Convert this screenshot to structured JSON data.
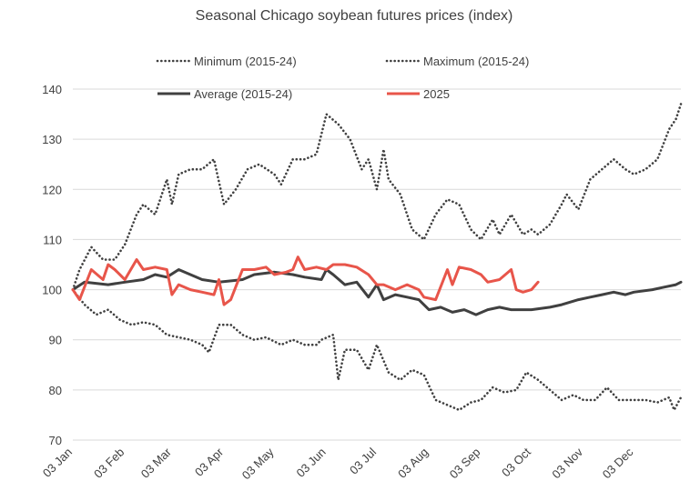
{
  "chart_data": {
    "type": "line",
    "title": "Seasonal Chicago soybean futures prices (index)",
    "xlabel": "",
    "ylabel": "",
    "ylim": [
      70,
      140
    ],
    "yticks": [
      70,
      80,
      90,
      100,
      110,
      120,
      130,
      140
    ],
    "x_ticks": [
      "03 Jan",
      "03 Feb",
      "03 Mar",
      "03 Apr",
      "03 May",
      "03 Jun",
      "03 Jul",
      "03 Aug",
      "03 Sep",
      "03 Oct",
      "03 Nov",
      "03 Dec"
    ],
    "grid": "horizontal",
    "legend_position": "top",
    "series": [
      {
        "name": "Minimum (2015-24)",
        "style": "dotted",
        "color": "#404040",
        "points": [
          [
            "03 Jan",
            100
          ],
          [
            "10 Jan",
            97
          ],
          [
            "17 Jan",
            95
          ],
          [
            "24 Jan",
            96
          ],
          [
            "31 Jan",
            94
          ],
          [
            "07 Feb",
            93
          ],
          [
            "14 Feb",
            93.5
          ],
          [
            "21 Feb",
            93
          ],
          [
            "28 Feb",
            91
          ],
          [
            "07 Mar",
            90.5
          ],
          [
            "14 Mar",
            90
          ],
          [
            "21 Mar",
            89
          ],
          [
            "25 Mar",
            87.5
          ],
          [
            "31 Mar",
            93
          ],
          [
            "07 Apr",
            93
          ],
          [
            "14 Apr",
            91
          ],
          [
            "21 Apr",
            90
          ],
          [
            "28 Apr",
            90.5
          ],
          [
            "07 May",
            89
          ],
          [
            "14 May",
            90
          ],
          [
            "21 May",
            89
          ],
          [
            "28 May",
            89
          ],
          [
            "31 May",
            90
          ],
          [
            "07 Jun",
            91
          ],
          [
            "10 Jun",
            82
          ],
          [
            "14 Jun",
            88
          ],
          [
            "21 Jun",
            88
          ],
          [
            "28 Jun",
            84
          ],
          [
            "03 Jul",
            89
          ],
          [
            "10 Jul",
            83.5
          ],
          [
            "17 Jul",
            82
          ],
          [
            "24 Jul",
            84
          ],
          [
            "31 Jul",
            83
          ],
          [
            "07 Aug",
            78
          ],
          [
            "14 Aug",
            77
          ],
          [
            "21 Aug",
            76
          ],
          [
            "28 Aug",
            77.5
          ],
          [
            "03 Sep",
            78
          ],
          [
            "10 Sep",
            80.5
          ],
          [
            "17 Sep",
            79.5
          ],
          [
            "24 Sep",
            80
          ],
          [
            "30 Sep",
            83.5
          ],
          [
            "07 Oct",
            82
          ],
          [
            "14 Oct",
            80
          ],
          [
            "21 Oct",
            78
          ],
          [
            "28 Oct",
            79
          ],
          [
            "03 Nov",
            78
          ],
          [
            "10 Nov",
            78
          ],
          [
            "17 Nov",
            80.5
          ],
          [
            "24 Nov",
            78
          ],
          [
            "03 Dec",
            78
          ],
          [
            "10 Dec",
            78
          ],
          [
            "17 Dec",
            77.5
          ],
          [
            "24 Dec",
            78.5
          ],
          [
            "27 Dec",
            76
          ],
          [
            "31 Dec",
            78.5
          ]
        ]
      },
      {
        "name": "Maximum (2015-24)",
        "style": "dotted",
        "color": "#404040",
        "points": [
          [
            "03 Jan",
            100
          ],
          [
            "07 Jan",
            104
          ],
          [
            "14 Jan",
            108.5
          ],
          [
            "21 Jan",
            106
          ],
          [
            "28 Jan",
            106
          ],
          [
            "03 Feb",
            109
          ],
          [
            "10 Feb",
            115
          ],
          [
            "14 Feb",
            117
          ],
          [
            "21 Feb",
            115
          ],
          [
            "28 Feb",
            122
          ],
          [
            "03 Mar",
            117
          ],
          [
            "07 Mar",
            123
          ],
          [
            "14 Mar",
            124
          ],
          [
            "21 Mar",
            124
          ],
          [
            "28 Mar",
            126
          ],
          [
            "03 Apr",
            117
          ],
          [
            "10 Apr",
            120
          ],
          [
            "17 Apr",
            124
          ],
          [
            "24 Apr",
            125
          ],
          [
            "03 May",
            123
          ],
          [
            "07 May",
            121
          ],
          [
            "14 May",
            126
          ],
          [
            "21 May",
            126
          ],
          [
            "28 May",
            127
          ],
          [
            "31 May",
            131
          ],
          [
            "03 Jun",
            135
          ],
          [
            "10 Jun",
            133
          ],
          [
            "17 Jun",
            130
          ],
          [
            "24 Jun",
            124
          ],
          [
            "28 Jun",
            126
          ],
          [
            "03 Jul",
            120
          ],
          [
            "07 Jul",
            128
          ],
          [
            "10 Jul",
            122
          ],
          [
            "17 Jul",
            119
          ],
          [
            "24 Jul",
            112
          ],
          [
            "31 Jul",
            110
          ],
          [
            "07 Aug",
            115
          ],
          [
            "14 Aug",
            118
          ],
          [
            "21 Aug",
            117
          ],
          [
            "28 Aug",
            112
          ],
          [
            "03 Sep",
            110
          ],
          [
            "10 Sep",
            114
          ],
          [
            "14 Sep",
            111
          ],
          [
            "21 Sep",
            115
          ],
          [
            "28 Sep",
            111
          ],
          [
            "03 Oct",
            112
          ],
          [
            "07 Oct",
            111
          ],
          [
            "14 Oct",
            113
          ],
          [
            "21 Oct",
            117
          ],
          [
            "24 Oct",
            119
          ],
          [
            "31 Oct",
            116
          ],
          [
            "07 Nov",
            122
          ],
          [
            "14 Nov",
            124
          ],
          [
            "21 Nov",
            126
          ],
          [
            "28 Nov",
            124
          ],
          [
            "03 Dec",
            123
          ],
          [
            "10 Dec",
            124
          ],
          [
            "17 Dec",
            126
          ],
          [
            "24 Dec",
            132
          ],
          [
            "28 Dec",
            134
          ],
          [
            "31 Dec",
            137
          ]
        ]
      },
      {
        "name": "Average (2015-24)",
        "style": "solid",
        "color": "#404040",
        "points": [
          [
            "03 Jan",
            100
          ],
          [
            "10 Jan",
            101.5
          ],
          [
            "24 Jan",
            101
          ],
          [
            "03 Feb",
            101.5
          ],
          [
            "14 Feb",
            102
          ],
          [
            "21 Feb",
            103
          ],
          [
            "28 Feb",
            102.5
          ],
          [
            "07 Mar",
            104
          ],
          [
            "14 Mar",
            103
          ],
          [
            "21 Mar",
            102
          ],
          [
            "31 Mar",
            101.5
          ],
          [
            "14 Apr",
            102
          ],
          [
            "21 Apr",
            103
          ],
          [
            "03 May",
            103.5
          ],
          [
            "14 May",
            103
          ],
          [
            "21 May",
            102.5
          ],
          [
            "31 May",
            102
          ],
          [
            "03 Jun",
            104
          ],
          [
            "07 Jun",
            103
          ],
          [
            "14 Jun",
            101
          ],
          [
            "21 Jun",
            101.5
          ],
          [
            "28 Jun",
            98.5
          ],
          [
            "03 Jul",
            101
          ],
          [
            "07 Jul",
            98
          ],
          [
            "14 Jul",
            99
          ],
          [
            "21 Jul",
            98.5
          ],
          [
            "28 Jul",
            98
          ],
          [
            "03 Aug",
            96
          ],
          [
            "10 Aug",
            96.5
          ],
          [
            "17 Aug",
            95.5
          ],
          [
            "24 Aug",
            96
          ],
          [
            "31 Aug",
            95
          ],
          [
            "07 Sep",
            96
          ],
          [
            "14 Sep",
            96.5
          ],
          [
            "21 Sep",
            96
          ],
          [
            "28 Sep",
            96
          ],
          [
            "03 Oct",
            96
          ],
          [
            "14 Oct",
            96.5
          ],
          [
            "21 Oct",
            97
          ],
          [
            "31 Oct",
            98
          ],
          [
            "07 Nov",
            98.5
          ],
          [
            "14 Nov",
            99
          ],
          [
            "21 Nov",
            99.5
          ],
          [
            "28 Nov",
            99
          ],
          [
            "03 Dec",
            99.5
          ],
          [
            "14 Dec",
            100
          ],
          [
            "21 Dec",
            100.5
          ],
          [
            "28 Dec",
            101
          ],
          [
            "31 Dec",
            101.5
          ]
        ]
      },
      {
        "name": "2025",
        "style": "solid",
        "color": "#e8554a",
        "points": [
          [
            "03 Jan",
            100
          ],
          [
            "07 Jan",
            98
          ],
          [
            "14 Jan",
            104
          ],
          [
            "21 Jan",
            102
          ],
          [
            "24 Jan",
            105
          ],
          [
            "28 Jan",
            104
          ],
          [
            "03 Feb",
            102
          ],
          [
            "10 Feb",
            106
          ],
          [
            "14 Feb",
            104
          ],
          [
            "21 Feb",
            104.5
          ],
          [
            "28 Feb",
            104
          ],
          [
            "03 Mar",
            99
          ],
          [
            "07 Mar",
            101
          ],
          [
            "14 Mar",
            100
          ],
          [
            "21 Mar",
            99.5
          ],
          [
            "28 Mar",
            99
          ],
          [
            "31 Mar",
            102
          ],
          [
            "03 Apr",
            97
          ],
          [
            "07 Apr",
            98
          ],
          [
            "14 Apr",
            104
          ],
          [
            "21 Apr",
            104
          ],
          [
            "28 Apr",
            104.5
          ],
          [
            "03 May",
            103
          ],
          [
            "10 May",
            103.5
          ],
          [
            "14 May",
            104
          ],
          [
            "17 May",
            106.5
          ],
          [
            "21 May",
            104
          ],
          [
            "28 May",
            104.5
          ],
          [
            "03 Jun",
            104
          ],
          [
            "07 Jun",
            105
          ],
          [
            "14 Jun",
            105
          ],
          [
            "21 Jun",
            104.5
          ],
          [
            "28 Jun",
            103
          ],
          [
            "03 Jul",
            101
          ],
          [
            "07 Jul",
            101
          ],
          [
            "14 Jul",
            100
          ],
          [
            "21 Jul",
            101
          ],
          [
            "28 Jul",
            100
          ],
          [
            "31 Jul",
            98.5
          ],
          [
            "07 Aug",
            98
          ],
          [
            "14 Aug",
            104
          ],
          [
            "17 Aug",
            101
          ],
          [
            "21 Aug",
            104.5
          ],
          [
            "28 Aug",
            104
          ],
          [
            "03 Sep",
            103
          ],
          [
            "07 Sep",
            101.5
          ],
          [
            "14 Sep",
            102
          ],
          [
            "21 Sep",
            104
          ],
          [
            "24 Sep",
            100
          ],
          [
            "28 Sep",
            99.5
          ],
          [
            "03 Oct",
            100
          ],
          [
            "07 Oct",
            101.5
          ]
        ]
      }
    ]
  }
}
